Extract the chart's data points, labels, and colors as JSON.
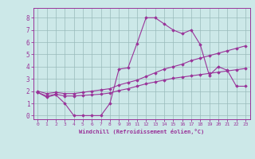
{
  "xlabel": "Windchill (Refroidissement éolien,°C)",
  "bg_color": "#cce8e8",
  "line_color": "#993399",
  "grid_color": "#99bbbb",
  "xlim": [
    -0.5,
    23.5
  ],
  "ylim": [
    -0.3,
    8.8
  ],
  "xticks": [
    0,
    1,
    2,
    3,
    4,
    5,
    6,
    7,
    8,
    9,
    10,
    11,
    12,
    13,
    14,
    15,
    16,
    17,
    18,
    19,
    20,
    21,
    22,
    23
  ],
  "yticks": [
    0,
    1,
    2,
    3,
    4,
    5,
    6,
    7,
    8
  ],
  "line1_x": [
    0,
    1,
    2,
    3,
    4,
    5,
    6,
    7,
    8,
    9,
    10,
    11,
    12,
    13,
    14,
    15,
    16,
    17,
    18,
    19,
    20,
    21,
    22,
    23
  ],
  "line1_y": [
    1.9,
    1.5,
    1.7,
    1.0,
    0.0,
    0.0,
    0.0,
    0.0,
    1.0,
    3.8,
    3.9,
    5.9,
    8.0,
    8.0,
    7.5,
    7.0,
    6.7,
    7.0,
    5.8,
    3.3,
    4.0,
    3.7,
    2.4,
    2.4
  ],
  "line2_x": [
    0,
    1,
    2,
    3,
    4,
    5,
    6,
    7,
    8,
    9,
    10,
    11,
    12,
    13,
    14,
    15,
    16,
    17,
    18,
    19,
    20,
    21,
    22,
    23
  ],
  "line2_y": [
    2.0,
    1.8,
    1.9,
    1.8,
    1.8,
    1.9,
    2.0,
    2.1,
    2.2,
    2.5,
    2.7,
    2.9,
    3.2,
    3.5,
    3.8,
    4.0,
    4.2,
    4.5,
    4.7,
    4.9,
    5.1,
    5.3,
    5.5,
    5.7
  ],
  "line3_x": [
    0,
    1,
    2,
    3,
    4,
    5,
    6,
    7,
    8,
    9,
    10,
    11,
    12,
    13,
    14,
    15,
    16,
    17,
    18,
    19,
    20,
    21,
    22,
    23
  ],
  "line3_y": [
    1.9,
    1.6,
    1.75,
    1.6,
    1.6,
    1.65,
    1.7,
    1.75,
    1.85,
    2.05,
    2.2,
    2.4,
    2.6,
    2.75,
    2.9,
    3.05,
    3.15,
    3.25,
    3.35,
    3.45,
    3.55,
    3.65,
    3.75,
    3.85
  ]
}
